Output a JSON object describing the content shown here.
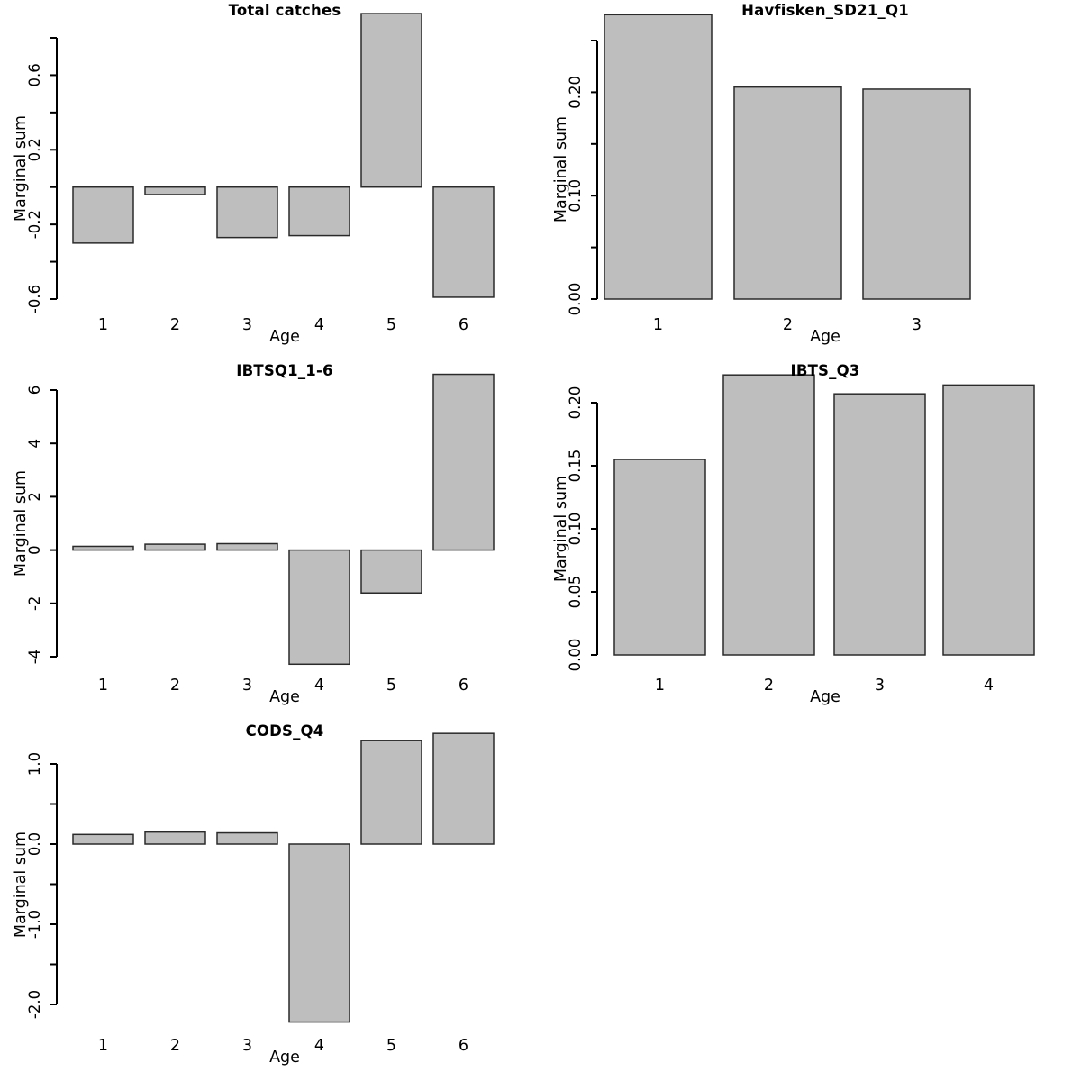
{
  "figure": {
    "background_color": "#ffffff",
    "bar_fill_color": "#bebebe",
    "bar_border_color": "#2a2a2a",
    "axis_color": "#000000",
    "text_color": "#000000",
    "grid_layout": "3 rows x 2 columns, bottom-right cell empty"
  },
  "chart_data": [
    {
      "type": "bar",
      "title": "Total catches",
      "xlabel": "Age",
      "ylabel": "Marginal sum",
      "categories": [
        "1",
        "2",
        "3",
        "4",
        "5",
        "6"
      ],
      "values": [
        -0.3,
        -0.04,
        -0.27,
        -0.26,
        0.93,
        -0.59
      ],
      "ylim": [
        -0.6,
        0.93
      ],
      "yticks": [
        -0.6,
        -0.4,
        -0.2,
        0,
        0.2,
        0.4,
        0.6,
        0.8
      ],
      "ytick_labels": [
        "-0.6",
        "",
        "-0.2",
        "",
        "0.2",
        "",
        "0.6",
        ""
      ],
      "grid": false,
      "legend": null
    },
    {
      "type": "bar",
      "title": "Havfisken_SD21_Q1",
      "xlabel": "Age",
      "ylabel": "Marginal sum",
      "categories": [
        "1",
        "2",
        "3"
      ],
      "values": [
        0.275,
        0.205,
        0.203
      ],
      "ylim": [
        0,
        0.275
      ],
      "yticks": [
        0,
        0.05,
        0.1,
        0.15,
        0.2,
        0.25
      ],
      "ytick_labels": [
        "0.00",
        "",
        "0.10",
        "",
        "0.20",
        ""
      ],
      "grid": false,
      "legend": null
    },
    {
      "type": "bar",
      "title": "IBTSQ1_1-6",
      "xlabel": "Age",
      "ylabel": "Marginal sum",
      "categories": [
        "1",
        "2",
        "3",
        "4",
        "5",
        "6"
      ],
      "values": [
        0.14,
        0.22,
        0.24,
        -4.28,
        -1.61,
        6.59
      ],
      "ylim": [
        -4.3,
        6.6
      ],
      "yticks": [
        -4,
        -2,
        0,
        2,
        4,
        6
      ],
      "ytick_labels": [
        "-4",
        "-2",
        "0",
        "2",
        "4",
        "6"
      ],
      "grid": false,
      "legend": null
    },
    {
      "type": "bar",
      "title": "IBTS_Q3",
      "xlabel": "Age",
      "ylabel": "Marginal sum",
      "categories": [
        "1",
        "2",
        "3",
        "4"
      ],
      "values": [
        0.155,
        0.222,
        0.207,
        0.214
      ],
      "ylim": [
        0,
        0.222
      ],
      "yticks": [
        0,
        0.05,
        0.1,
        0.15,
        0.2
      ],
      "ytick_labels": [
        "0.00",
        "0.05",
        "0.10",
        "0.15",
        "0.20"
      ],
      "grid": false,
      "legend": null
    },
    {
      "type": "bar",
      "title": "CODS_Q4",
      "xlabel": "Age",
      "ylabel": "Marginal sum",
      "categories": [
        "1",
        "2",
        "3",
        "4",
        "5",
        "6"
      ],
      "values": [
        0.12,
        0.15,
        0.14,
        -2.22,
        1.29,
        1.38
      ],
      "ylim": [
        -2.22,
        1.38
      ],
      "yticks": [
        -2,
        -1.5,
        -1,
        -0.5,
        0,
        0.5,
        1
      ],
      "ytick_labels": [
        "-2.0",
        "",
        "-1.0",
        "",
        "0.0",
        "",
        "1.0"
      ],
      "grid": false,
      "legend": null
    }
  ]
}
